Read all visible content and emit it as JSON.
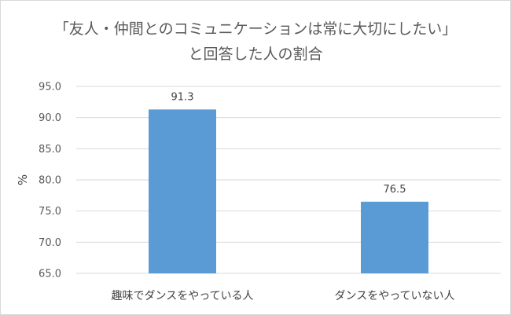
{
  "chart_data": {
    "type": "bar",
    "title": "「友人・仲間とのコミュニケーションは常に大切にしたい」",
    "subtitle": "と回答した人の割合",
    "xlabel": "",
    "ylabel": "%",
    "categories": [
      "趣味でダンスをやっている人",
      "ダンスをやっていない人"
    ],
    "values": [
      91.3,
      76.5
    ],
    "data_labels": [
      "91.3",
      "76.5"
    ],
    "ylim": [
      65.0,
      95.0
    ],
    "yticks": [
      "65.0",
      "70.0",
      "75.0",
      "80.0",
      "85.0",
      "90.0",
      "95.0"
    ],
    "grid": true,
    "legend": "none",
    "bar_color": "#5b9bd5",
    "grid_color": "#d9d9d9"
  }
}
